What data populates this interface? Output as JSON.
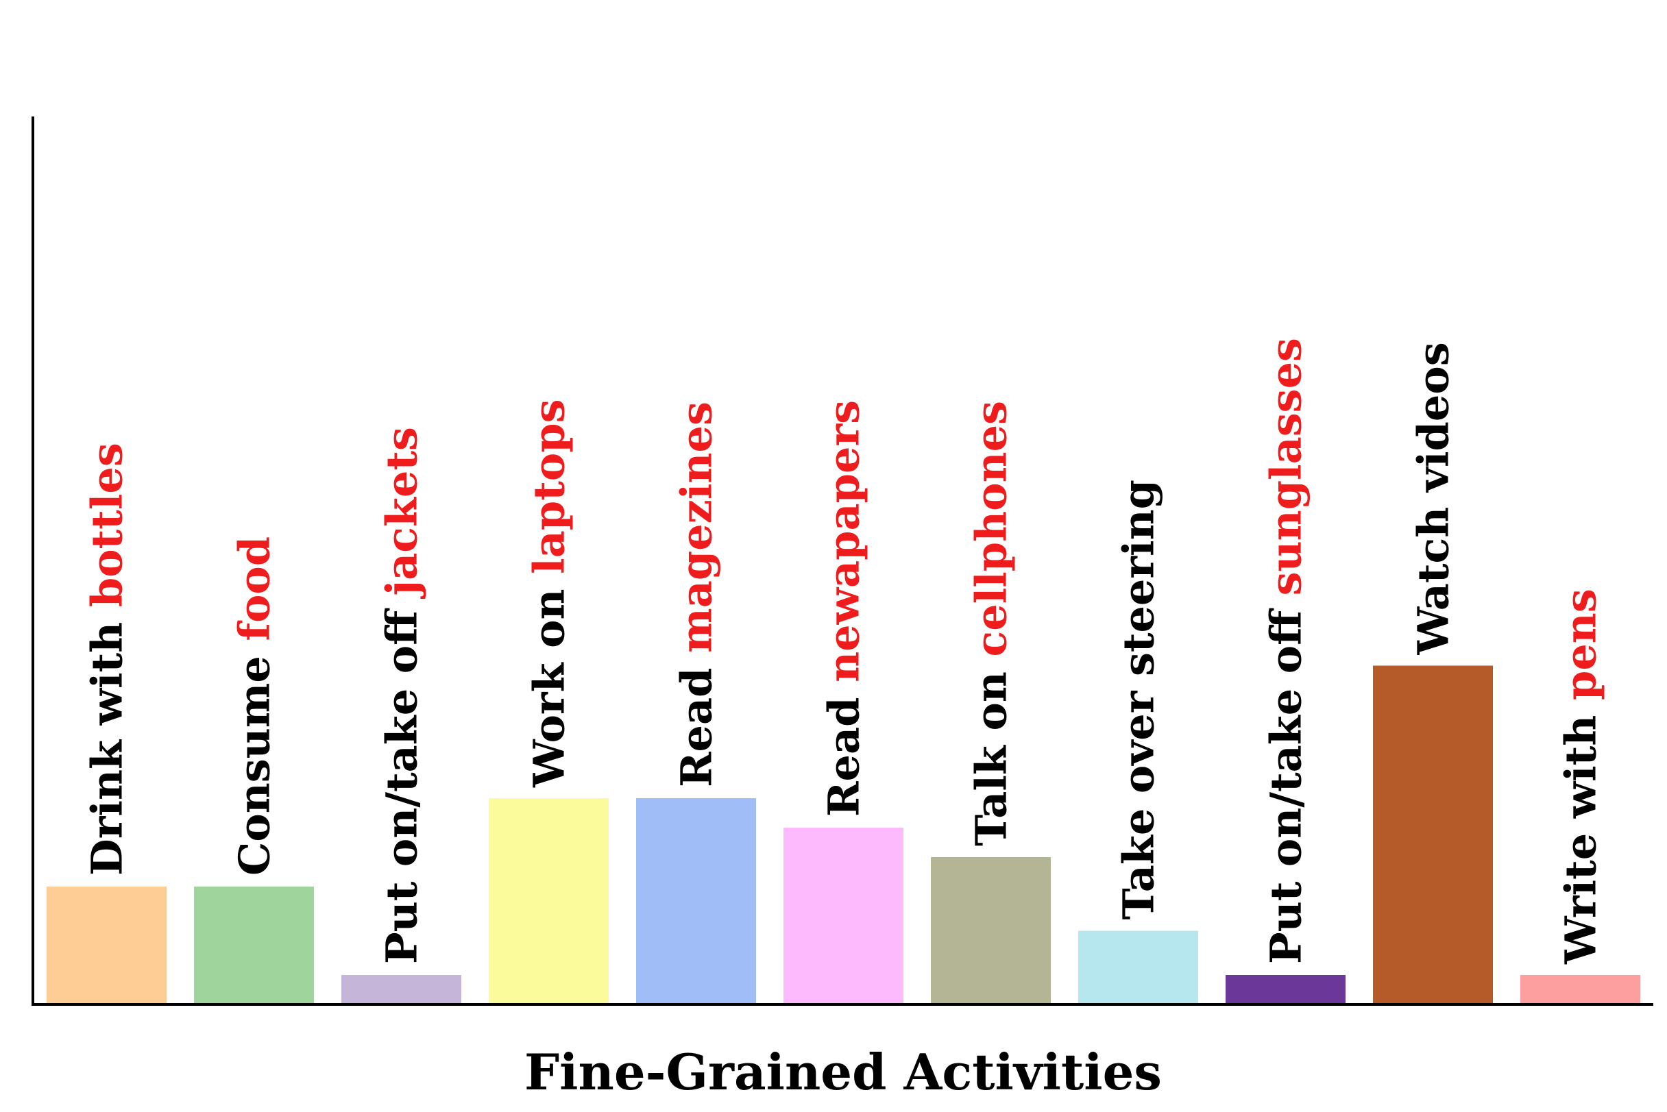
{
  "chart_data": {
    "type": "bar",
    "title": "",
    "xlabel": "Fine-Grained Activities",
    "ylabel": "",
    "ylim": [
      0,
      30
    ],
    "grid": false,
    "categories": [
      {
        "prefix": "Drink with ",
        "highlight": "bottles"
      },
      {
        "prefix": "Consume ",
        "highlight": "food"
      },
      {
        "prefix": "Put on/take off ",
        "highlight": "jackets"
      },
      {
        "prefix": "Work on ",
        "highlight": "laptops"
      },
      {
        "prefix": "Read ",
        "highlight": "magezines"
      },
      {
        "prefix": "Read ",
        "highlight": "newapapers"
      },
      {
        "prefix": "Talk on ",
        "highlight": "cellphones"
      },
      {
        "prefix": "Take over steering",
        "highlight": ""
      },
      {
        "prefix": "Put on/take off ",
        "highlight": "sunglasses"
      },
      {
        "prefix": "Watch videos",
        "highlight": ""
      },
      {
        "prefix": "Write with ",
        "highlight": "pens"
      }
    ],
    "values": [
      8,
      8,
      2,
      14,
      14,
      12,
      10,
      5,
      2,
      23,
      2
    ],
    "colors": [
      "#fdcd95",
      "#9fd59c",
      "#c5b5d9",
      "#fcfb9c",
      "#a0bdf7",
      "#fdbbfd",
      "#b4b594",
      "#b7e7ee",
      "#6b3899",
      "#b55b2a",
      "#fd9f9e"
    ],
    "label_color": "#000000",
    "highlight_color": "#ee1c1c",
    "axis_color": "#000000"
  }
}
